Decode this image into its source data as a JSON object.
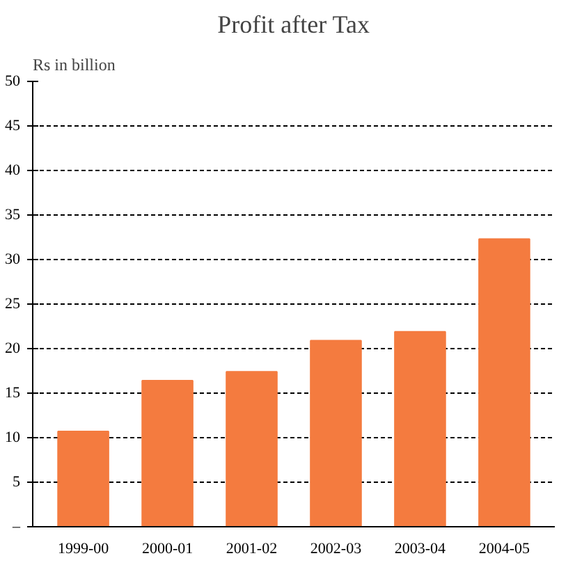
{
  "chart_data": {
    "type": "bar",
    "title": "Profit after Tax",
    "ylabel": "Rs in billion",
    "categories": [
      "1999-00",
      "2000-01",
      "2001-02",
      "2002-03",
      "2003-04",
      "2004-05"
    ],
    "values": [
      10.7,
      16.4,
      17.4,
      20.9,
      21.9,
      32.3
    ],
    "color": "#f47b3f",
    "ylim": [
      0,
      50
    ],
    "yticks": [
      {
        "value": 0,
        "label": "–"
      },
      5,
      10,
      15,
      20,
      25,
      30,
      35,
      40,
      45,
      50
    ],
    "grid": "y"
  }
}
